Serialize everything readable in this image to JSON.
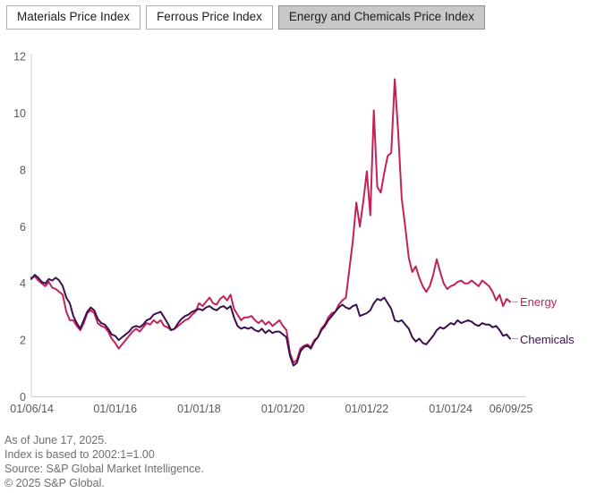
{
  "tabs": [
    {
      "label": "Materials Price Index",
      "active": false
    },
    {
      "label": "Ferrous Price Index",
      "active": false
    },
    {
      "label": "Energy and Chemicals Price Index",
      "active": true
    }
  ],
  "chart_data": {
    "type": "line",
    "x_start": "01/2014",
    "x_frequency": "monthly",
    "x_tick_labels": [
      "01/06/14",
      "01/01/16",
      "01/01/18",
      "01/01/20",
      "01/01/22",
      "01/01/24",
      "06/09/25"
    ],
    "x_tick_month_index": [
      0.16,
      24,
      48,
      72,
      96,
      120,
      137.27
    ],
    "ylim": [
      0,
      12
    ],
    "y_ticks": [
      0,
      2,
      4,
      6,
      8,
      10,
      12
    ],
    "grid": false,
    "legend_position": "right-of-line-end",
    "axis_color": "#cccccc",
    "tick_text_color": "#58595b",
    "series": [
      {
        "name": "Energy",
        "color": "#C2215A",
        "values": [
          4.2,
          4.25,
          4.1,
          4.0,
          3.9,
          4.05,
          3.85,
          3.8,
          3.7,
          3.6,
          3.0,
          2.7,
          2.7,
          2.5,
          2.35,
          2.6,
          2.95,
          3.05,
          2.95,
          2.6,
          2.5,
          2.45,
          2.3,
          2.05,
          1.9,
          1.7,
          1.85,
          2.0,
          2.15,
          2.3,
          2.4,
          2.3,
          2.45,
          2.6,
          2.55,
          2.7,
          2.6,
          2.7,
          2.5,
          2.45,
          2.35,
          2.4,
          2.5,
          2.6,
          2.7,
          2.75,
          2.9,
          3.0,
          3.3,
          3.2,
          3.35,
          3.5,
          3.3,
          3.25,
          3.45,
          3.55,
          3.4,
          3.6,
          3.1,
          2.9,
          2.7,
          2.8,
          2.8,
          2.85,
          2.7,
          2.6,
          2.7,
          2.55,
          2.65,
          2.5,
          2.6,
          2.7,
          2.5,
          2.35,
          1.55,
          1.2,
          1.3,
          1.7,
          1.8,
          1.85,
          1.75,
          2.0,
          2.1,
          2.4,
          2.55,
          2.8,
          2.95,
          3.0,
          3.25,
          3.4,
          3.5,
          4.5,
          5.5,
          6.85,
          6.0,
          6.9,
          7.95,
          6.4,
          10.1,
          7.4,
          7.2,
          7.9,
          8.5,
          8.6,
          11.2,
          9.3,
          7.0,
          6.0,
          4.9,
          4.4,
          4.6,
          4.2,
          3.9,
          3.7,
          3.9,
          4.3,
          4.85,
          4.4,
          4.0,
          3.8,
          3.9,
          3.95,
          4.05,
          4.1,
          4.0,
          4.0,
          4.1,
          4.0,
          3.9,
          4.1,
          4.0,
          3.9,
          3.7,
          3.4,
          3.6,
          3.2,
          3.45,
          3.35
        ]
      },
      {
        "name": "Chemicals",
        "color": "#3A104E",
        "values": [
          4.15,
          4.3,
          4.2,
          4.05,
          4.0,
          4.15,
          4.1,
          4.2,
          4.1,
          3.9,
          3.5,
          3.3,
          2.85,
          2.6,
          2.4,
          2.7,
          3.0,
          3.15,
          3.05,
          2.75,
          2.6,
          2.55,
          2.4,
          2.2,
          2.15,
          2.0,
          2.1,
          2.2,
          2.3,
          2.45,
          2.5,
          2.45,
          2.55,
          2.7,
          2.75,
          2.9,
          2.95,
          3.0,
          2.8,
          2.6,
          2.35,
          2.4,
          2.6,
          2.75,
          2.85,
          2.9,
          3.0,
          3.05,
          3.1,
          3.05,
          3.15,
          3.2,
          3.1,
          3.05,
          3.15,
          3.2,
          3.1,
          3.2,
          2.8,
          2.5,
          2.4,
          2.45,
          2.4,
          2.45,
          2.35,
          2.3,
          2.4,
          2.25,
          2.35,
          2.25,
          2.3,
          2.3,
          2.2,
          2.1,
          1.45,
          1.1,
          1.2,
          1.6,
          1.75,
          1.8,
          1.7,
          1.95,
          2.1,
          2.35,
          2.5,
          2.7,
          2.85,
          3.0,
          3.15,
          3.25,
          3.15,
          3.1,
          3.2,
          3.25,
          2.85,
          2.9,
          2.95,
          3.05,
          3.3,
          3.45,
          3.4,
          3.5,
          3.3,
          3.1,
          2.7,
          2.65,
          2.7,
          2.55,
          2.4,
          2.1,
          1.95,
          2.05,
          1.9,
          1.85,
          2.0,
          2.15,
          2.35,
          2.45,
          2.4,
          2.5,
          2.6,
          2.55,
          2.7,
          2.6,
          2.65,
          2.7,
          2.65,
          2.55,
          2.5,
          2.6,
          2.55,
          2.55,
          2.45,
          2.5,
          2.35,
          2.15,
          2.2,
          2.05
        ]
      }
    ]
  },
  "footer": {
    "lines": [
      "As of June 17, 2025.",
      "Index is based to 2002:1=1.00",
      "Source: S&P Global Market Intelligence.",
      "© 2025 S&P Global."
    ]
  }
}
